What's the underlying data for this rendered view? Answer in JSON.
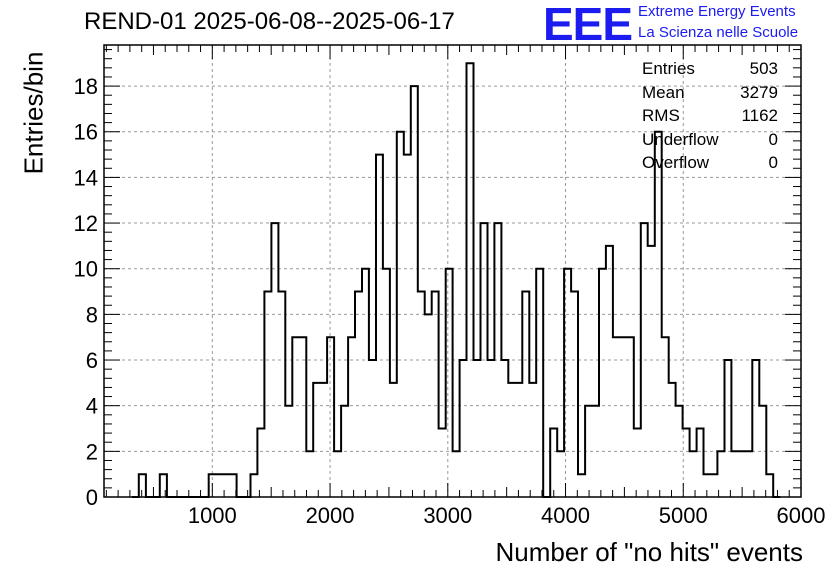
{
  "chart_data": {
    "type": "histogram",
    "title": "REND-01 2025-06-08--2025-06-17",
    "xlabel": "Number of \"no hits\" events",
    "ylabel": "Entries/bin",
    "xlim": [
      80,
      6000
    ],
    "ylim": [
      0,
      19.8
    ],
    "grid": true,
    "x_ticks": [
      1000,
      2000,
      3000,
      4000,
      5000,
      6000
    ],
    "y_ticks": [
      0,
      2,
      4,
      6,
      8,
      10,
      12,
      14,
      16,
      18
    ],
    "bin_width": 59.2,
    "bins": [
      [
        317,
        0
      ],
      [
        376,
        1
      ],
      [
        436,
        0
      ],
      [
        554,
        1
      ],
      [
        614,
        0
      ],
      [
        969,
        1
      ],
      [
        1206,
        0
      ],
      [
        1324,
        1
      ],
      [
        1383,
        3
      ],
      [
        1442,
        9
      ],
      [
        1502,
        12
      ],
      [
        1561,
        9
      ],
      [
        1620,
        4
      ],
      [
        1679,
        7
      ],
      [
        1798,
        2
      ],
      [
        1857,
        5
      ],
      [
        1975,
        7
      ],
      [
        2034,
        2
      ],
      [
        2094,
        4
      ],
      [
        2153,
        7
      ],
      [
        2212,
        9
      ],
      [
        2271,
        10
      ],
      [
        2330,
        6
      ],
      [
        2390,
        15
      ],
      [
        2449,
        10
      ],
      [
        2508,
        5
      ],
      [
        2567,
        16
      ],
      [
        2626,
        15
      ],
      [
        2686,
        18
      ],
      [
        2745,
        9
      ],
      [
        2804,
        8
      ],
      [
        2863,
        9
      ],
      [
        2922,
        3
      ],
      [
        2982,
        10
      ],
      [
        3041,
        2
      ],
      [
        3100,
        6
      ],
      [
        3159,
        19
      ],
      [
        3218,
        6
      ],
      [
        3278,
        12
      ],
      [
        3337,
        6
      ],
      [
        3396,
        12
      ],
      [
        3455,
        6
      ],
      [
        3514,
        5
      ],
      [
        3633,
        9
      ],
      [
        3692,
        5
      ],
      [
        3751,
        10
      ],
      [
        3810,
        0
      ],
      [
        3870,
        3
      ],
      [
        3929,
        2
      ],
      [
        3988,
        10
      ],
      [
        4047,
        9
      ],
      [
        4106,
        1
      ],
      [
        4166,
        4
      ],
      [
        4284,
        10
      ],
      [
        4343,
        11
      ],
      [
        4402,
        7
      ],
      [
        4580,
        3
      ],
      [
        4639,
        12
      ],
      [
        4698,
        11
      ],
      [
        4758,
        16
      ],
      [
        4817,
        7
      ],
      [
        4876,
        5
      ],
      [
        4935,
        4
      ],
      [
        4994,
        3
      ],
      [
        5054,
        2
      ],
      [
        5113,
        3
      ],
      [
        5172,
        1
      ],
      [
        5290,
        2
      ],
      [
        5350,
        6
      ],
      [
        5409,
        2
      ],
      [
        5586,
        6
      ],
      [
        5646,
        4
      ],
      [
        5705,
        1
      ],
      [
        5764,
        0
      ]
    ],
    "stats": {
      "Entries": "503",
      "Mean": "3279",
      "RMS": "1162",
      "Underflow": "0",
      "Overflow": "0"
    },
    "logo": {
      "mark": "EEE",
      "line1": "Extreme Energy Events",
      "line2": "La Scienza nelle Scuole",
      "color": "#1c1cf0"
    }
  }
}
